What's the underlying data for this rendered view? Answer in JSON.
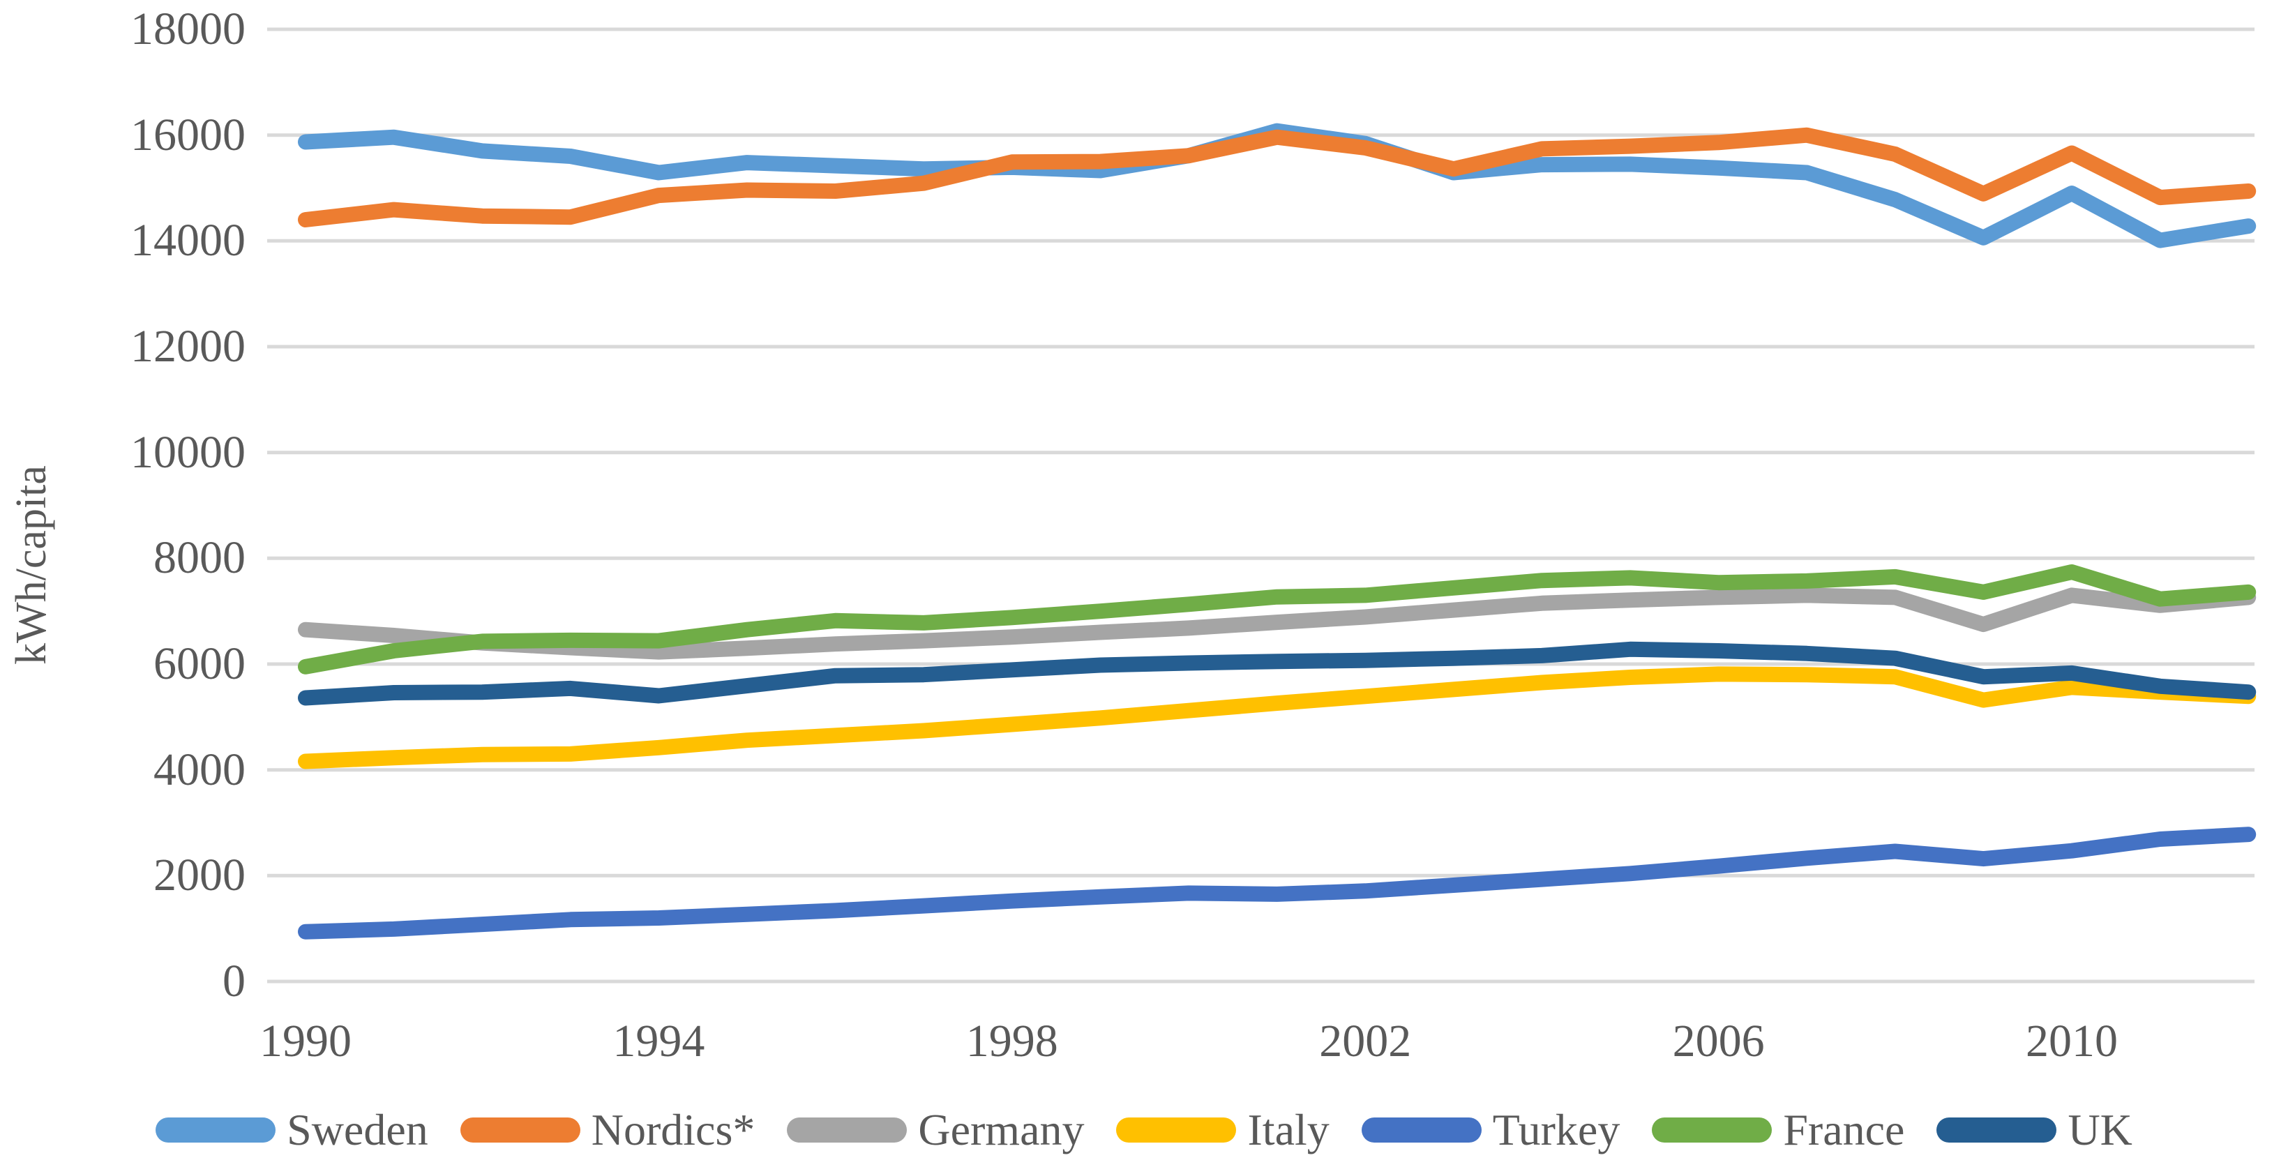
{
  "figure": {
    "background_color": "#FFFFFF",
    "text_color": "#595959",
    "gridline_color": "#D9D9D9"
  },
  "chart_data": {
    "type": "line",
    "title": "",
    "xlabel": "",
    "ylabel": "kWh/capita",
    "x": [
      1990,
      1991,
      1992,
      1993,
      1994,
      1995,
      1996,
      1997,
      1998,
      1999,
      2000,
      2001,
      2002,
      2003,
      2004,
      2005,
      2006,
      2007,
      2008,
      2009,
      2010,
      2011,
      2012
    ],
    "x_tick_labels": [
      "1990",
      "1994",
      "1998",
      "2002",
      "2006",
      "2010"
    ],
    "ylim": [
      0,
      18000
    ],
    "y_ticks": [
      0,
      2000,
      4000,
      6000,
      8000,
      10000,
      12000,
      14000,
      16000,
      18000
    ],
    "grid": true,
    "legend_position": "bottom",
    "line_width": 22,
    "series": [
      {
        "name": "Sweden",
        "color": "#5B9BD5",
        "values": [
          15870,
          15960,
          15700,
          15600,
          15290,
          15480,
          15420,
          15360,
          15390,
          15330,
          15610,
          16080,
          15840,
          15290,
          15440,
          15450,
          15380,
          15290,
          14780,
          14060,
          14900,
          14010,
          14280
        ]
      },
      {
        "name": "Nordics*",
        "color": "#ED7D31",
        "values": [
          14400,
          14590,
          14470,
          14450,
          14860,
          14960,
          14940,
          15090,
          15490,
          15500,
          15610,
          15960,
          15760,
          15360,
          15740,
          15790,
          15860,
          16000,
          15640,
          14890,
          15660,
          14820,
          14940
        ]
      },
      {
        "name": "Germany",
        "color": "#A5A5A5",
        "values": [
          6650,
          6540,
          6400,
          6310,
          6230,
          6300,
          6380,
          6440,
          6510,
          6600,
          6680,
          6790,
          6890,
          7020,
          7150,
          7210,
          7260,
          7300,
          7260,
          6750,
          7300,
          7110,
          7260
        ]
      },
      {
        "name": "Italy",
        "color": "#FFC000",
        "values": [
          4160,
          4230,
          4290,
          4300,
          4420,
          4560,
          4650,
          4740,
          4860,
          4980,
          5120,
          5260,
          5390,
          5520,
          5650,
          5750,
          5810,
          5800,
          5760,
          5320,
          5560,
          5470,
          5390
        ]
      },
      {
        "name": "Turkey",
        "color": "#4472C4",
        "values": [
          940,
          990,
          1080,
          1170,
          1200,
          1270,
          1340,
          1430,
          1520,
          1600,
          1670,
          1650,
          1710,
          1820,
          1930,
          2040,
          2180,
          2330,
          2460,
          2320,
          2470,
          2690,
          2780
        ]
      },
      {
        "name": "France",
        "color": "#70AD47",
        "values": [
          5950,
          6250,
          6430,
          6450,
          6440,
          6650,
          6820,
          6780,
          6880,
          7000,
          7130,
          7270,
          7300,
          7440,
          7580,
          7630,
          7540,
          7570,
          7650,
          7360,
          7740,
          7230,
          7360
        ]
      },
      {
        "name": "UK",
        "color": "#255E91",
        "values": [
          5360,
          5460,
          5470,
          5540,
          5400,
          5590,
          5780,
          5800,
          5890,
          5980,
          6020,
          6050,
          6070,
          6110,
          6160,
          6280,
          6250,
          6200,
          6110,
          5760,
          5830,
          5580,
          5470
        ]
      }
    ]
  }
}
